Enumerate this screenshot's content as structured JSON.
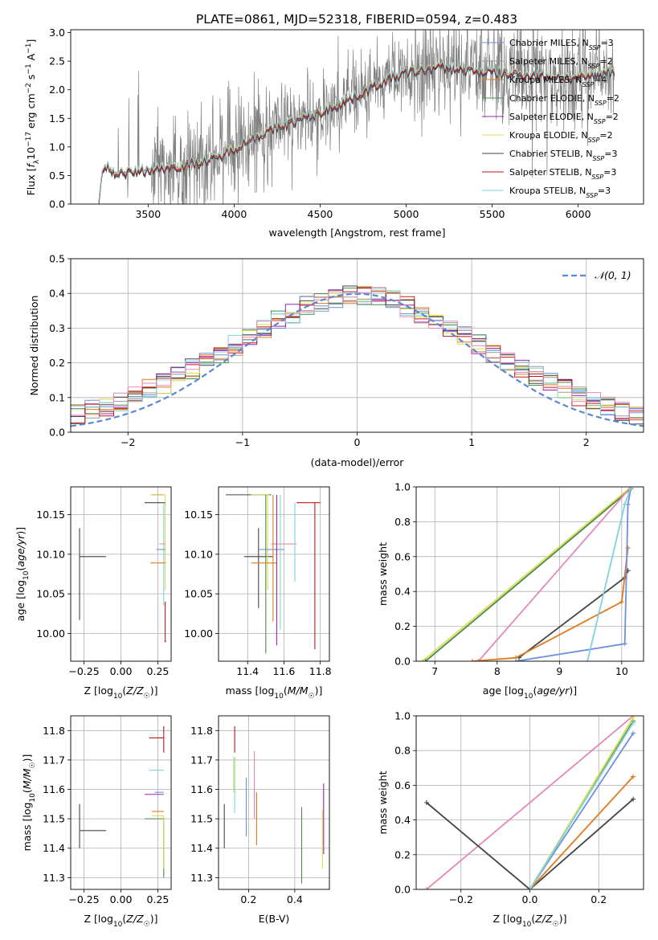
{
  "figure": {
    "title": "PLATE=0861, MJD=52318, FIBERID=0594, z=0.483"
  },
  "colors": {
    "Chabrier MILES": "#6f8fdc",
    "Salpeter MILES": "#9a9a9a",
    "Kroupa MILES": "#e07a1f",
    "Chabrier ELODIE": "#4a8a4a",
    "Salpeter ELODIE": "#a020b0",
    "Kroupa ELODIE": "#dcdc50",
    "Chabrier STELIB": "#444444",
    "Salpeter STELIB": "#c01818",
    "Kroupa STELIB": "#7fd3dc",
    "pink": "#e588b8",
    "data": "#808080",
    "gaussian": "#5a87d6"
  },
  "chart_data": [
    {
      "id": "spectrum",
      "type": "line",
      "xlabel": "wavelength [Angstrom, rest frame]",
      "ylabel_parts": [
        "Flux [",
        "f",
        "λ",
        "10",
        "−17",
        " erg cm",
        "−2",
        " s",
        "−1",
        " A",
        "−1",
        "]"
      ],
      "xlim": [
        3050,
        6380
      ],
      "ylim": [
        0,
        3.05
      ],
      "xticks": [
        3500,
        4000,
        4500,
        5000,
        5500,
        6000
      ],
      "yticks": [
        0.0,
        0.5,
        1.0,
        1.5,
        2.0,
        2.5,
        3.0
      ],
      "xtick_labels": [
        "3500",
        "4000",
        "4500",
        "5000",
        "5500",
        "6000"
      ],
      "ytick_labels": [
        "0.0",
        "0.5",
        "1.0",
        "1.5",
        "2.0",
        "2.5",
        "3.0"
      ],
      "data_range": [
        3210,
        6210
      ],
      "continuum_knots": [
        [
          3210,
          0.0
        ],
        [
          3230,
          0.52
        ],
        [
          3260,
          0.66
        ],
        [
          3300,
          0.55
        ],
        [
          3400,
          0.55
        ],
        [
          3500,
          0.6
        ],
        [
          3700,
          0.68
        ],
        [
          3900,
          0.8
        ],
        [
          4000,
          0.98
        ],
        [
          4100,
          1.15
        ],
        [
          4300,
          1.4
        ],
        [
          4500,
          1.6
        ],
        [
          4700,
          1.88
        ],
        [
          4900,
          2.2
        ],
        [
          5000,
          2.3
        ],
        [
          5200,
          2.4
        ],
        [
          5500,
          2.3
        ],
        [
          5800,
          2.25
        ],
        [
          6000,
          2.2
        ],
        [
          6210,
          2.35
        ]
      ],
      "legend": [
        {
          "label": "Chabrier MILES",
          "nssp": "3"
        },
        {
          "label": "Salpeter MILES",
          "nssp": "2"
        },
        {
          "label": "Kroupa MILES",
          "nssp": "4"
        },
        {
          "label": "Chabrier ELODIE",
          "nssp": "2"
        },
        {
          "label": "Salpeter ELODIE",
          "nssp": "2"
        },
        {
          "label": "Kroupa ELODIE",
          "nssp": "2"
        },
        {
          "label": "Chabrier STELIB",
          "nssp": "3"
        },
        {
          "label": "Salpeter STELIB",
          "nssp": "3"
        },
        {
          "label": "Kroupa STELIB",
          "nssp": "3"
        }
      ],
      "legend_placement": "upper right"
    },
    {
      "id": "residuals",
      "type": "histogram",
      "xlabel": "(data-model)/error",
      "ylabel": "Normed distribution",
      "xlim": [
        -2.5,
        2.5
      ],
      "ylim": [
        0,
        0.5
      ],
      "xticks": [
        -2,
        -1,
        0,
        1,
        2
      ],
      "yticks": [
        0.0,
        0.1,
        0.2,
        0.3,
        0.4,
        0.5
      ],
      "xtick_labels": [
        "−2",
        "−1",
        "0",
        "1",
        "2"
      ],
      "ytick_labels": [
        "0.0",
        "0.1",
        "0.2",
        "0.3",
        "0.4",
        "0.5"
      ],
      "bin_range": [
        -2.5,
        2.5
      ],
      "bins": 40,
      "gaussian_label": "𝒩(0, 1)",
      "grid": true
    },
    {
      "id": "age_Z",
      "type": "errorbar",
      "xlabel": "Z [log10(Z/Z☉)]",
      "ylabel": "age  [log10(age/yr)]",
      "xlim": [
        -0.34,
        0.34
      ],
      "ylim": [
        9.965,
        10.185
      ],
      "xticks": [
        -0.25,
        0.0,
        0.25
      ],
      "yticks": [
        10.0,
        10.05,
        10.1,
        10.15
      ],
      "xtick_labels": [
        "−0.25",
        "0.00",
        "0.25"
      ],
      "ytick_labels": [
        "10.00",
        "10.05",
        "10.10",
        "10.15"
      ],
      "points": [
        {
          "model": "Chabrier STELIB",
          "x": -0.28,
          "y": 10.097,
          "xerr": [
            0,
            0.18
          ],
          "yerr": [
            0.08,
            0.036
          ]
        },
        {
          "model": "Salpeter STELIB",
          "x": 0.29,
          "y": 10.175,
          "xerr": [
            0.08,
            0
          ],
          "yerr": [
            0,
            0
          ]
        },
        {
          "model": "Kroupa ELODIE",
          "x": 0.3,
          "y": 10.175,
          "xerr": [
            0.1,
            0
          ],
          "yerr": [
            0.12,
            0
          ]
        },
        {
          "model": "Chabrier STELIB",
          "x": 0.3,
          "y": 10.165,
          "xerr": [
            0.14,
            0
          ],
          "yerr": [
            0,
            0
          ]
        },
        {
          "model": "Kroupa STELIB",
          "x": 0.29,
          "y": 10.165,
          "xerr": [
            0,
            0
          ],
          "yerr": [
            0.13,
            0
          ]
        },
        {
          "model": "pink",
          "x": 0.3,
          "y": 10.113,
          "xerr": [
            0.04,
            0
          ],
          "yerr": [
            0,
            0
          ]
        },
        {
          "model": "Chabrier MILES",
          "x": 0.3,
          "y": 10.106,
          "xerr": [
            0.06,
            0
          ],
          "yerr": [
            0,
            0
          ]
        },
        {
          "model": "Kroupa MILES",
          "x": 0.3,
          "y": 10.089,
          "xerr": [
            0.1,
            0
          ],
          "yerr": [
            0,
            0
          ]
        },
        {
          "model": "Salpeter STELIB",
          "x": 0.3,
          "y": 10.02,
          "xerr": [
            0,
            0
          ],
          "yerr": [
            0.03,
            0.02
          ]
        },
        {
          "model": "Salpeter ELODIE",
          "x": 0.3,
          "y": 9.99,
          "xerr": [
            0,
            0
          ],
          "yerr": [
            0,
            0
          ]
        }
      ]
    },
    {
      "id": "age_mass",
      "type": "errorbar",
      "xlabel": "mass [log10(M/M☉)]",
      "xlim": [
        11.24,
        11.85
      ],
      "ylim": [
        9.965,
        10.185
      ],
      "xticks": [
        11.4,
        11.6,
        11.8
      ],
      "yticks": [
        10.0,
        10.05,
        10.1,
        10.15
      ],
      "xtick_labels": [
        "11.4",
        "11.6",
        "11.8"
      ],
      "ytick_labels": [
        "10.00",
        "10.05",
        "10.10",
        "10.15"
      ],
      "points": [
        {
          "model": "Chabrier STELIB",
          "x": 11.46,
          "y": 10.097,
          "xerr": [
            0.08,
            0.08
          ],
          "yerr": [
            0.065,
            0.036
          ]
        },
        {
          "model": "Chabrier STELIB",
          "x": 11.3,
          "y": 10.175,
          "xerr": [
            0.02,
            0.23
          ],
          "yerr": [
            0,
            0
          ]
        },
        {
          "model": "Kroupa ELODIE",
          "x": 11.42,
          "y": 10.175,
          "xerr": [
            0,
            0.1
          ],
          "yerr": [
            0,
            0
          ]
        },
        {
          "model": "Kroupa ELODIE",
          "x": 11.51,
          "y": 10.175,
          "xerr": [
            0,
            0
          ],
          "yerr": [
            0.12,
            0
          ]
        },
        {
          "model": "Salpeter STELIB",
          "x": 11.77,
          "y": 10.165,
          "xerr": [
            0.1,
            0.03
          ],
          "yerr": [
            0.185,
            0
          ]
        },
        {
          "model": "Chabrier ELODIE",
          "x": 11.5,
          "y": 10.175,
          "xerr": [
            0,
            0
          ],
          "yerr": [
            0.2,
            0
          ]
        },
        {
          "model": "Chabrier MILES",
          "x": 11.53,
          "y": 10.106,
          "xerr": [
            0.07,
            0.07
          ],
          "yerr": [
            0,
            0
          ]
        },
        {
          "model": "pink",
          "x": 11.6,
          "y": 10.113,
          "xerr": [
            0.07,
            0.07
          ],
          "yerr": [
            0,
            0
          ]
        },
        {
          "model": "Kroupa MILES",
          "x": 11.49,
          "y": 10.089,
          "xerr": [
            0.07,
            0.07
          ],
          "yerr": [
            0,
            0
          ]
        },
        {
          "model": "Kroupa STELIB",
          "x": 11.66,
          "y": 10.165,
          "xerr": [
            0,
            0
          ],
          "yerr": [
            0.1,
            0
          ]
        },
        {
          "model": "Salpeter ELODIE",
          "x": 11.56,
          "y": 10.175,
          "xerr": [
            0,
            0
          ],
          "yerr": [
            0.19,
            0
          ]
        },
        {
          "model": "Kroupa STELIB",
          "x": 11.58,
          "y": 10.175,
          "xerr": [
            0,
            0
          ],
          "yerr": [
            0.17,
            0
          ]
        },
        {
          "model": "Kroupa MILES",
          "x": 11.54,
          "y": 10.175,
          "xerr": [
            0,
            0
          ],
          "yerr": [
            0.16,
            0
          ]
        }
      ]
    },
    {
      "id": "mw_age",
      "type": "line",
      "xlabel": "age  [log10(age/yr)]",
      "ylabel": "mass weight",
      "xlim": [
        6.7,
        10.35
      ],
      "ylim": [
        0,
        1
      ],
      "xticks": [
        7,
        8,
        9,
        10
      ],
      "yticks": [
        0.0,
        0.2,
        0.4,
        0.6,
        0.8,
        1.0
      ],
      "xtick_labels": [
        "7",
        "8",
        "9",
        "10"
      ],
      "ytick_labels": [
        "0.0",
        "0.2",
        "0.4",
        "0.6",
        "0.8",
        "1.0"
      ],
      "series": [
        {
          "model": "Kroupa ELODIE",
          "x": [
            6.8,
            10.15
          ],
          "y": [
            0.0,
            1.0
          ]
        },
        {
          "model": "Chabrier ELODIE",
          "x": [
            6.85,
            10.15
          ],
          "y": [
            0.0,
            0.99
          ]
        },
        {
          "model": "pink",
          "x": [
            7.7,
            10.15
          ],
          "y": [
            0.0,
            1.0
          ]
        },
        {
          "model": "Chabrier STELIB",
          "x": [
            8.35,
            10.05,
            10.1
          ],
          "y": [
            0.02,
            0.48,
            0.52
          ]
        },
        {
          "model": "Kroupa MILES",
          "x": [
            7.6,
            8.3,
            10.0,
            10.1
          ],
          "y": [
            0.0,
            0.02,
            0.34,
            0.65
          ]
        },
        {
          "model": "Chabrier MILES",
          "x": [
            8.3,
            10.05,
            10.1,
            10.15
          ],
          "y": [
            0.0,
            0.1,
            0.9,
            1.0
          ]
        },
        {
          "model": "Kroupa STELIB",
          "x": [
            9.45,
            10.05,
            10.15
          ],
          "y": [
            0.0,
            0.9,
            1.0
          ]
        }
      ]
    },
    {
      "id": "mass_Z",
      "type": "errorbar",
      "xlabel": "Z [log10(Z/Z☉)]",
      "ylabel": "mass [log10(M/M☉)]",
      "xlim": [
        -0.34,
        0.34
      ],
      "ylim": [
        11.26,
        11.85
      ],
      "xticks": [
        -0.25,
        0.0,
        0.25
      ],
      "yticks": [
        11.3,
        11.4,
        11.5,
        11.6,
        11.7,
        11.8
      ],
      "xtick_labels": [
        "−0.25",
        "0.00",
        "0.25"
      ],
      "ytick_labels": [
        "11.3",
        "11.4",
        "11.5",
        "11.6",
        "11.7",
        "11.8"
      ],
      "points": [
        {
          "model": "Chabrier STELIB",
          "x": -0.28,
          "y": 11.46,
          "xerr": [
            0,
            0.18
          ],
          "yerr": [
            0.06,
            0.09
          ]
        },
        {
          "model": "Salpeter STELIB",
          "x": 0.29,
          "y": 11.775,
          "xerr": [
            0.1,
            0
          ],
          "yerr": [
            0.05,
            0.04
          ]
        },
        {
          "model": "Kroupa STELIB",
          "x": 0.29,
          "y": 11.665,
          "xerr": [
            0.1,
            0
          ],
          "yerr": [
            0,
            0
          ]
        },
        {
          "model": "Salpeter ELODIE",
          "x": 0.29,
          "y": 11.583,
          "xerr": [
            0.13,
            0
          ],
          "yerr": [
            0,
            0
          ]
        },
        {
          "model": "Chabrier MILES",
          "x": 0.29,
          "y": 11.59,
          "xerr": [
            0.06,
            0
          ],
          "yerr": [
            0,
            0
          ]
        },
        {
          "model": "Kroupa MILES",
          "x": 0.29,
          "y": 11.525,
          "xerr": [
            0.08,
            0
          ],
          "yerr": [
            0,
            0
          ]
        },
        {
          "model": "Chabrier ELODIE",
          "x": 0.29,
          "y": 11.5,
          "xerr": [
            0.13,
            0
          ],
          "yerr": [
            0.2,
            0
          ]
        },
        {
          "model": "Kroupa ELODIE",
          "x": 0.29,
          "y": 11.51,
          "xerr": [
            0.08,
            0
          ],
          "yerr": [
            0.18,
            0
          ]
        }
      ]
    },
    {
      "id": "mass_ebv",
      "type": "errorbar",
      "xlabel": "E(B-V)",
      "xlim": [
        0.07,
        0.55
      ],
      "ylim": [
        11.26,
        11.85
      ],
      "xticks": [
        0.2,
        0.4
      ],
      "yticks": [
        11.3,
        11.4,
        11.5,
        11.6,
        11.7,
        11.8
      ],
      "xtick_labels": [
        "0.2",
        "0.4"
      ],
      "ytick_labels": [
        "11.3",
        "11.4",
        "11.5",
        "11.6",
        "11.7",
        "11.8"
      ],
      "points": [
        {
          "model": "Chabrier STELIB",
          "x": 0.095,
          "y": 11.46,
          "xerr": [
            0,
            0
          ],
          "yerr": [
            0.06,
            0.09
          ]
        },
        {
          "model": "Salpeter STELIB",
          "x": 0.14,
          "y": 11.775,
          "xerr": [
            0,
            0
          ],
          "yerr": [
            0.05,
            0.04
          ]
        },
        {
          "model": "Kroupa STELIB",
          "x": 0.14,
          "y": 11.63,
          "xerr": [
            0,
            0
          ],
          "yerr": [
            0.11,
            0.08
          ]
        },
        {
          "model": "Kroupa ELODIE",
          "x": 0.135,
          "y": 11.66,
          "xerr": [
            0,
            0
          ],
          "yerr": [
            0.07,
            0.05
          ]
        },
        {
          "model": "Chabrier MILES",
          "x": 0.19,
          "y": 11.54,
          "xerr": [
            0,
            0
          ],
          "yerr": [
            0.1,
            0.1
          ]
        },
        {
          "model": "pink",
          "x": 0.225,
          "y": 11.6,
          "xerr": [
            0,
            0
          ],
          "yerr": [
            0.1,
            0.13
          ]
        },
        {
          "model": "Kroupa MILES",
          "x": 0.235,
          "y": 11.51,
          "xerr": [
            0,
            0
          ],
          "yerr": [
            0.1,
            0.08
          ]
        },
        {
          "model": "Chabrier ELODIE",
          "x": 0.43,
          "y": 11.43,
          "xerr": [
            0,
            0
          ],
          "yerr": [
            0.15,
            0.11
          ]
        },
        {
          "model": "Salpeter ELODIE",
          "x": 0.525,
          "y": 11.5,
          "xerr": [
            0,
            0
          ],
          "yerr": [
            0.12,
            0.12
          ]
        },
        {
          "model": "Kroupa ELODIE",
          "x": 0.52,
          "y": 11.43,
          "xerr": [
            0,
            0
          ],
          "yerr": [
            0.1,
            0.1
          ]
        }
      ]
    },
    {
      "id": "mw_Z",
      "type": "line",
      "xlabel": "Z [log10(Z/Z☉)]",
      "ylabel": "mass weight",
      "xlim": [
        -0.33,
        0.33
      ],
      "ylim": [
        0,
        1
      ],
      "xticks": [
        -0.2,
        0.0,
        0.2
      ],
      "yticks": [
        0.0,
        0.2,
        0.4,
        0.6,
        0.8,
        1.0
      ],
      "xtick_labels": [
        "−0.2",
        "0.0",
        "0.2"
      ],
      "ytick_labels": [
        "0.0",
        "0.2",
        "0.4",
        "0.6",
        "0.8",
        "1.0"
      ],
      "series": [
        {
          "model": "pink",
          "x": [
            -0.3,
            0.3
          ],
          "y": [
            0.0,
            1.0
          ]
        },
        {
          "model": "Chabrier STELIB",
          "x": [
            -0.3,
            0.0,
            0.3
          ],
          "y": [
            0.5,
            0.0,
            0.52
          ]
        },
        {
          "model": "Kroupa MILES",
          "x": [
            0.0,
            0.3
          ],
          "y": [
            0.0,
            0.65
          ]
        },
        {
          "model": "Chabrier MILES",
          "x": [
            0.0,
            0.3
          ],
          "y": [
            0.0,
            0.9
          ]
        },
        {
          "model": "Chabrier ELODIE",
          "x": [
            0.0,
            0.3
          ],
          "y": [
            0.0,
            0.97
          ]
        },
        {
          "model": "Kroupa ELODIE",
          "x": [
            0.0,
            0.3
          ],
          "y": [
            0.0,
            0.99
          ]
        },
        {
          "model": "Kroupa STELIB",
          "x": [
            0.0,
            0.3
          ],
          "y": [
            0.0,
            0.96
          ]
        }
      ]
    }
  ]
}
